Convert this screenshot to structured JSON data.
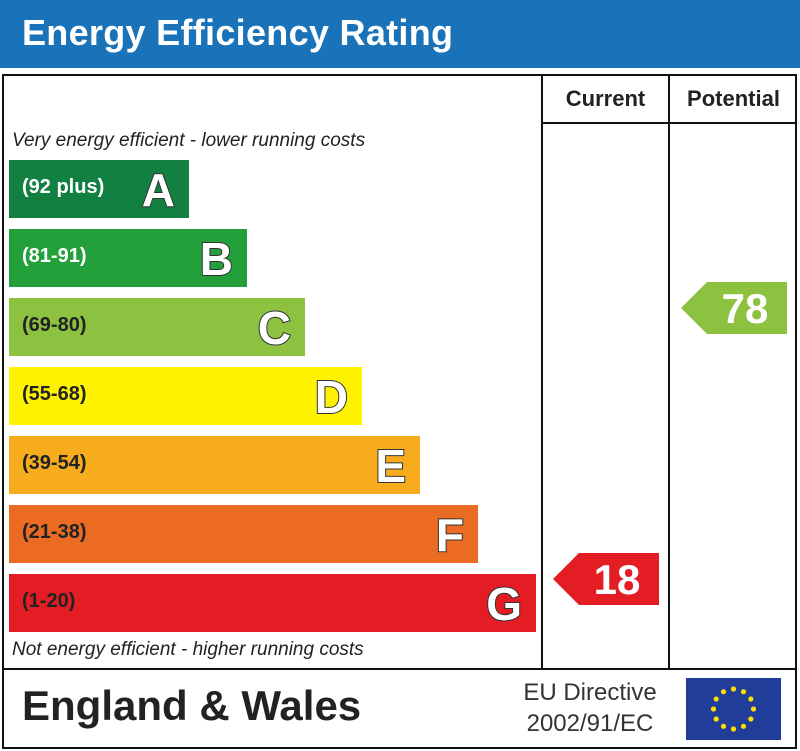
{
  "header": {
    "title": "Energy Efficiency Rating"
  },
  "columns": {
    "current": "Current",
    "potential": "Potential"
  },
  "notes": {
    "top": "Very energy efficient - lower running costs",
    "bottom": "Not energy efficient - higher running costs"
  },
  "footer": {
    "region": "England & Wales",
    "directive_line1": "EU Directive",
    "directive_line2": "2002/91/EC"
  },
  "chart_data": {
    "type": "bar",
    "title": "Energy Efficiency Rating",
    "bands": [
      {
        "letter": "A",
        "range": "(92 plus)",
        "color": "#118040"
      },
      {
        "letter": "B",
        "range": "(81-91)",
        "color": "#23a03a"
      },
      {
        "letter": "C",
        "range": "(69-80)",
        "color": "#8dc241"
      },
      {
        "letter": "D",
        "range": "(55-68)",
        "color": "#fff200"
      },
      {
        "letter": "E",
        "range": "(39-54)",
        "color": "#f7ac1e"
      },
      {
        "letter": "F",
        "range": "(21-38)",
        "color": "#ec6b23"
      },
      {
        "letter": "G",
        "range": "(1-20)",
        "color": "#e31d23"
      }
    ],
    "current": {
      "value": 18,
      "band": "G",
      "color": "#e31d23"
    },
    "potential": {
      "value": 78,
      "band": "C",
      "color": "#8dc241"
    }
  }
}
